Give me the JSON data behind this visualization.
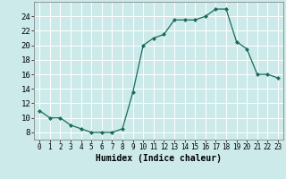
{
  "x": [
    0,
    1,
    2,
    3,
    4,
    5,
    6,
    7,
    8,
    9,
    10,
    11,
    12,
    13,
    14,
    15,
    16,
    17,
    18,
    19,
    20,
    21,
    22,
    23
  ],
  "y": [
    11,
    10,
    10,
    9,
    8.5,
    8,
    8,
    8,
    8.5,
    13.5,
    20,
    21,
    21.5,
    23.5,
    23.5,
    23.5,
    24,
    25,
    25,
    20.5,
    19.5,
    16,
    16,
    15.5
  ],
  "line_color": "#1a6b5a",
  "marker": "D",
  "marker_size": 2.0,
  "bg_color": "#cceaea",
  "grid_color": "#ffffff",
  "xlabel": "Humidex (Indice chaleur)",
  "xlabel_fontsize": 7,
  "ylim": [
    7,
    26
  ],
  "xlim": [
    -0.5,
    23.5
  ],
  "yticks": [
    8,
    10,
    12,
    14,
    16,
    18,
    20,
    22,
    24
  ],
  "xticks": [
    0,
    1,
    2,
    3,
    4,
    5,
    6,
    7,
    8,
    9,
    10,
    11,
    12,
    13,
    14,
    15,
    16,
    17,
    18,
    19,
    20,
    21,
    22,
    23
  ],
  "tick_fontsize": 6.5
}
